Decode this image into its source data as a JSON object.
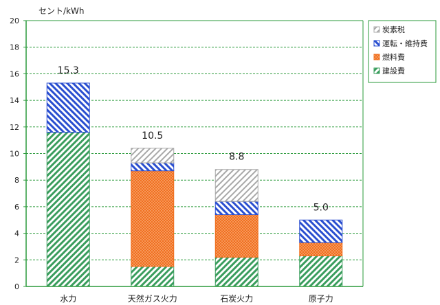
{
  "chart_data": {
    "type": "bar",
    "stacked": true,
    "unit_label": "セント/kWh",
    "categories": [
      "水力",
      "天然ガス火力",
      "石炭火力",
      "原子力"
    ],
    "series": [
      {
        "name": "建設費",
        "values": [
          11.6,
          1.5,
          2.2,
          2.3
        ],
        "color": "#3a9d5d",
        "pattern": "diagonal"
      },
      {
        "name": "燃料費",
        "values": [
          0,
          7.2,
          3.2,
          1.0
        ],
        "color": "#f07020",
        "pattern": "dots"
      },
      {
        "name": "運転・維持費",
        "values": [
          3.7,
          0.6,
          1.0,
          1.7
        ],
        "color": "#2a4fd0",
        "pattern": "diagonal"
      },
      {
        "name": "炭素税",
        "values": [
          0,
          1.1,
          2.4,
          0
        ],
        "color": "#a8a8a8",
        "pattern": "diagonal"
      }
    ],
    "totals": [
      "15.3",
      "10.5",
      "8.8",
      "5.0"
    ],
    "ylim": [
      0,
      20
    ],
    "yticks": [
      0,
      2,
      4,
      6,
      8,
      10,
      12,
      14,
      16,
      18,
      20
    ],
    "grid": true,
    "legend_position": "top-right",
    "legend_order": [
      "炭素税",
      "運転・維持費",
      "燃料費",
      "建設費"
    ],
    "axis_color": "#2a9a3a"
  }
}
